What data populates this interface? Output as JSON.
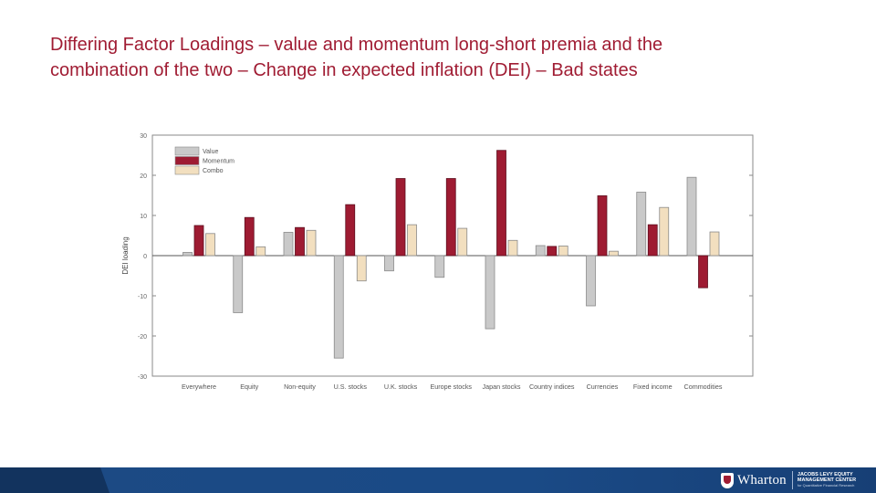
{
  "slide": {
    "title_line1": "Differing Factor Loadings – value and momentum long-short premia and the",
    "title_line2": "combination of the two – Change in expected inflation (DEI) – Bad states"
  },
  "colors": {
    "title": "#a01c33",
    "value": "#c9c9c9",
    "momentum": "#9e1b32",
    "combo": "#f2dfbf",
    "footer": "#1a4a86"
  },
  "footer": {
    "logo_word": "Wharton",
    "logo_sub": "UNIVERSITY of PENNSYLVANIA",
    "center_line1": "JACOBS LEVY EQUITY",
    "center_line2": "MANAGEMENT CENTER",
    "center_line3": "for Quantitative Financial Research"
  },
  "chart_data": {
    "type": "bar",
    "title": "",
    "xlabel": "",
    "ylabel": "DEI  loading",
    "ylim": [
      -30,
      30
    ],
    "yticks": [
      30,
      20,
      10,
      0,
      -10,
      -20,
      -30
    ],
    "grid": false,
    "legend_position": "top-left",
    "categories": [
      "Everywhere",
      "Equity",
      "Non-equity",
      "U.S. stocks",
      "U.K. stocks",
      "Europe stocks",
      "Japan stocks",
      "Country indices",
      "Currencies",
      "Fixed income",
      "Commodities"
    ],
    "series": [
      {
        "name": "Value",
        "color": "#c9c9c9",
        "values": [
          0.8,
          -14.2,
          5.8,
          -25.5,
          -3.8,
          -5.4,
          -18.2,
          2.5,
          -12.5,
          15.8,
          19.5
        ]
      },
      {
        "name": "Momentum",
        "color": "#9e1b32",
        "values": [
          7.5,
          9.5,
          7.0,
          12.7,
          19.2,
          19.2,
          26.2,
          2.3,
          14.9,
          7.7,
          -8.0
        ]
      },
      {
        "name": "Combo",
        "color": "#f2dfbf",
        "values": [
          5.5,
          2.2,
          6.3,
          -6.3,
          7.7,
          6.8,
          3.8,
          2.4,
          1.1,
          12.0,
          5.9
        ]
      }
    ]
  }
}
